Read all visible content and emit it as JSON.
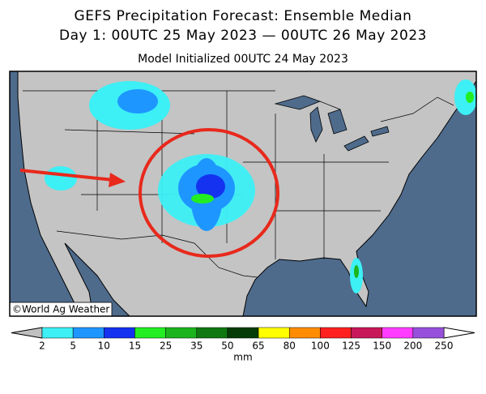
{
  "header": {
    "title": "GEFS Precipitation Forecast: Ensemble Median",
    "subtitle": "Day 1: 00UTC 25 May 2023 — 00UTC 26 May 2023",
    "initialized": "Model Initialized 00UTC 24 May 2023"
  },
  "credit": "©World Ag Weather",
  "legend": {
    "ticks": [
      2,
      5,
      10,
      15,
      25,
      35,
      50,
      65,
      80,
      100,
      125,
      150,
      200,
      250
    ],
    "colors": [
      "#3cf0f5",
      "#1e96ff",
      "#1432f0",
      "#22ee22",
      "#1cb41c",
      "#107810",
      "#063c06",
      "#ffff00",
      "#ff8c00",
      "#ff2020",
      "#c8185a",
      "#ff3cff",
      "#9650dc"
    ],
    "under_color": "#c0c0c0",
    "over_color": "#ffffff",
    "unit": "mm"
  }
}
